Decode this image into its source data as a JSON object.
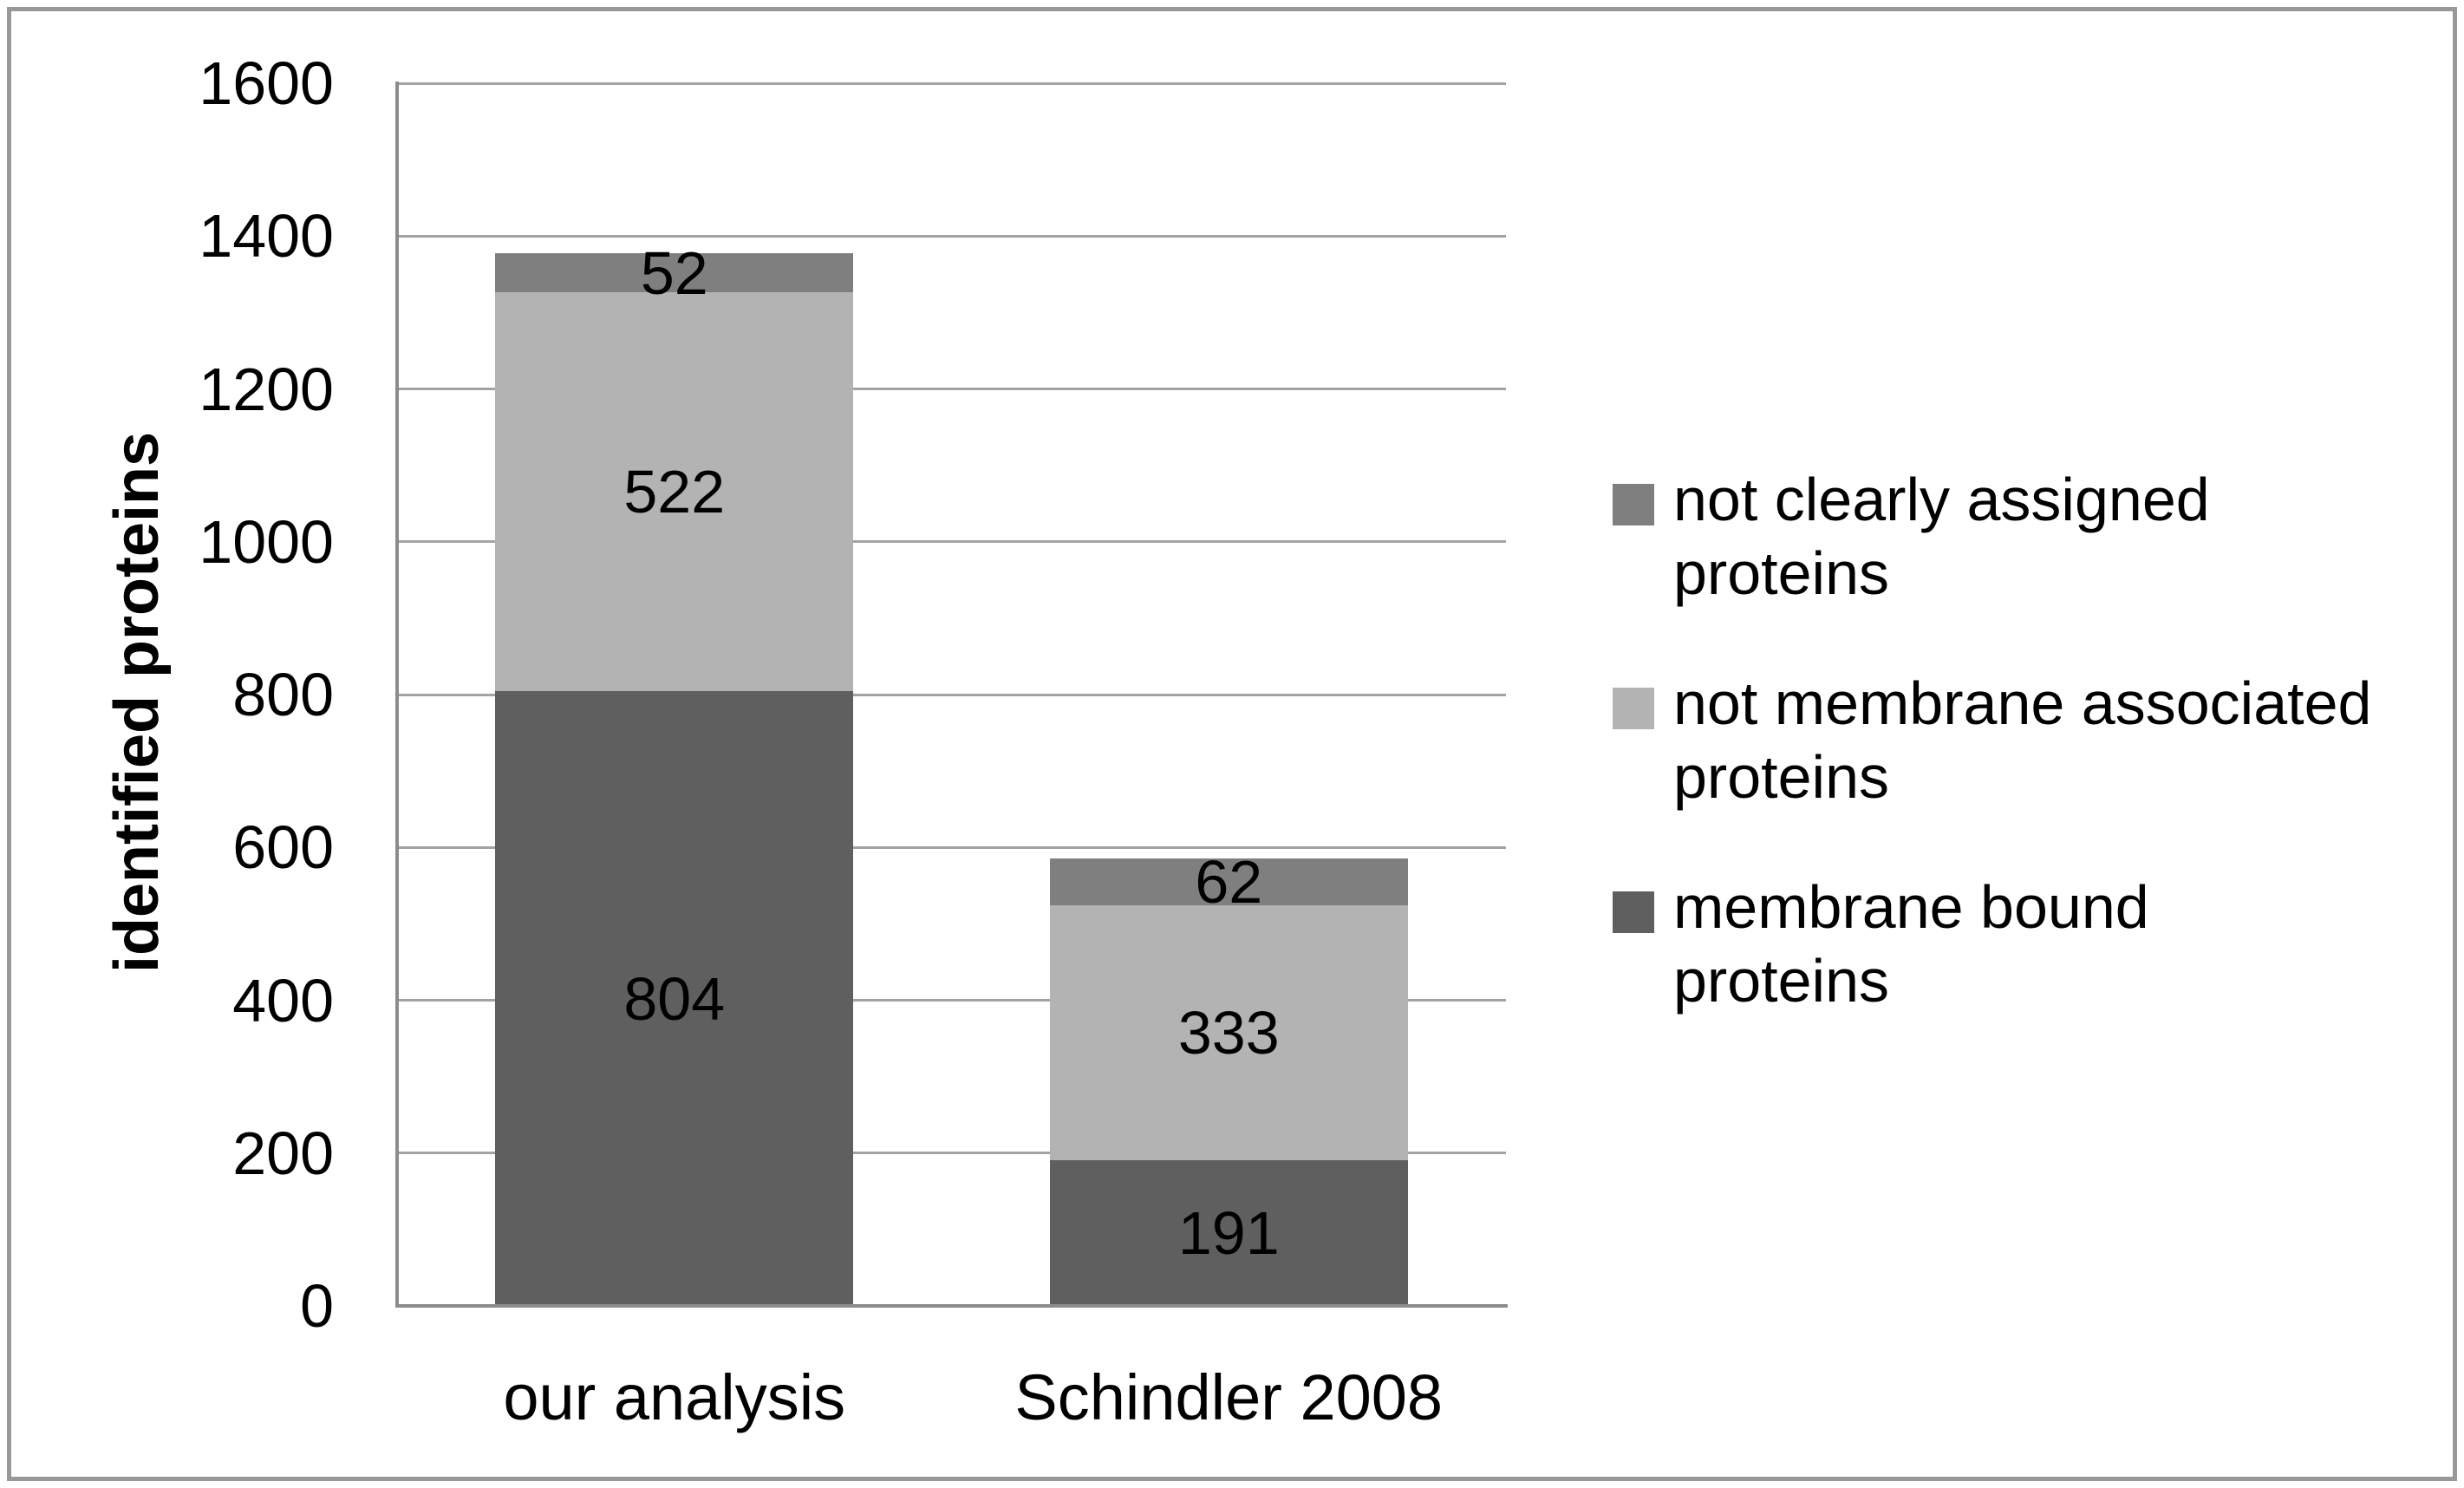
{
  "chart_data": {
    "type": "bar",
    "stacked": true,
    "categories": [
      "our analysis",
      "Schindler 2008"
    ],
    "series": [
      {
        "name": "membrane bound proteins",
        "color": "#5f5f5f",
        "values": [
          804,
          191
        ]
      },
      {
        "name": "not membrane associated proteins",
        "color": "#b3b3b3",
        "values": [
          522,
          333
        ]
      },
      {
        "name": "not clearly assigned proteins",
        "color": "#7f7f7f",
        "values": [
          52,
          62
        ]
      }
    ],
    "title": "",
    "xlabel": "",
    "ylabel": "identified proteins",
    "ylim": [
      0,
      1600
    ],
    "ytick_step": 200,
    "grid": true,
    "legend_position": "right",
    "data_labels_shown": true
  },
  "axes": {
    "y_title": "identified proteins",
    "y_tick_labels": [
      "0",
      "200",
      "400",
      "600",
      "800",
      "1000",
      "1200",
      "1400",
      "1600"
    ],
    "x_category_labels": [
      "our analysis",
      "Schindler 2008"
    ]
  },
  "legend": {
    "items": [
      {
        "color": "#7f7f7f",
        "lines": [
          "not clearly assigned",
          "proteins"
        ],
        "label": "not clearly assigned proteins"
      },
      {
        "color": "#b3b3b3",
        "lines": [
          "not membrane associated",
          "proteins"
        ],
        "label": "not membrane associated proteins"
      },
      {
        "color": "#5f5f5f",
        "lines": [
          "membrane bound",
          "proteins"
        ],
        "label": "membrane bound proteins"
      }
    ]
  },
  "colors": {
    "background": "#ffffff",
    "frame_border": "#999999",
    "gridline": "#a3a3a3",
    "axis_line": "#8c8c8c",
    "text": "#000000"
  }
}
